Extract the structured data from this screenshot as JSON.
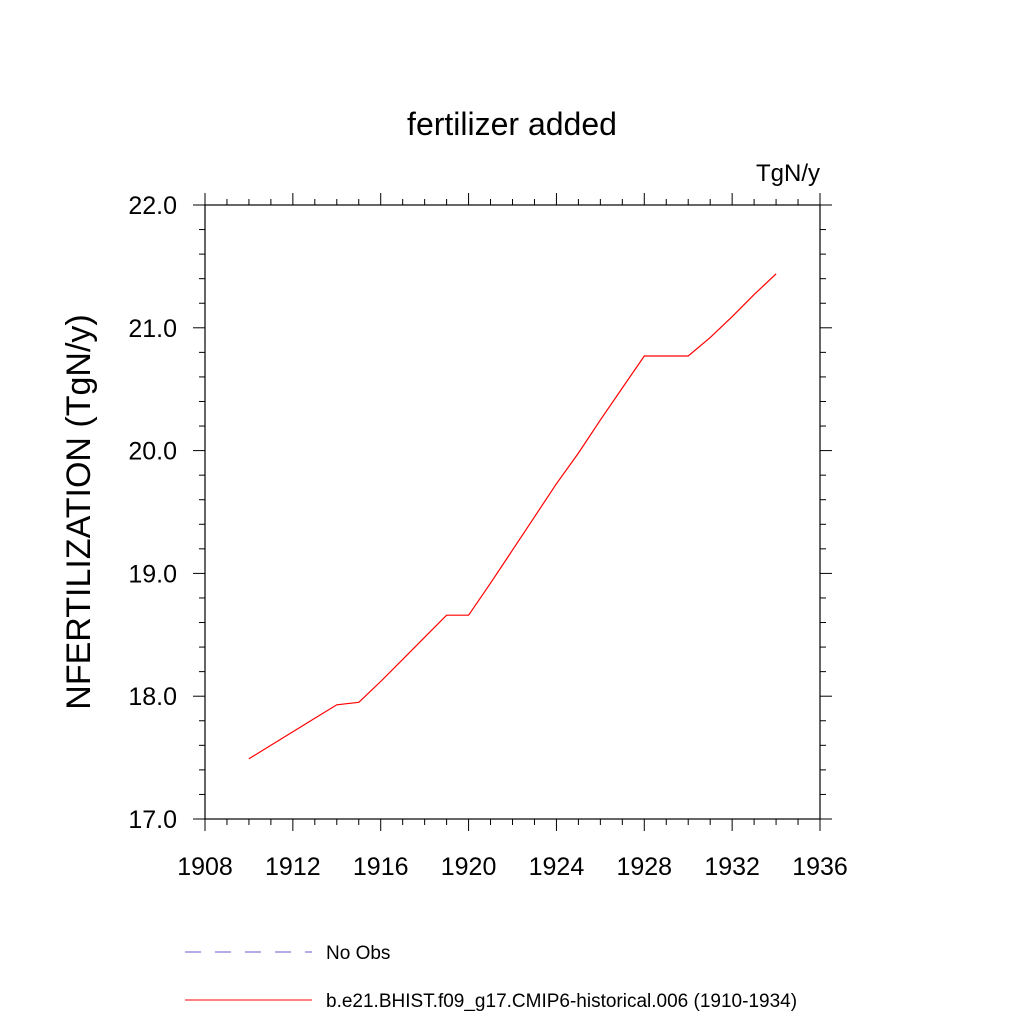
{
  "chart_data": {
    "type": "line",
    "title": "fertilizer added",
    "units": "TgN/y",
    "ylabel": "NFERTILIZATION  (TgN/y)",
    "xlabel": "",
    "xlim": [
      1908,
      1936
    ],
    "ylim": [
      17.0,
      22.0
    ],
    "xticks": [
      "1908",
      "1912",
      "1916",
      "1920",
      "1924",
      "1928",
      "1932",
      "1936"
    ],
    "yticks": [
      "17.0",
      "18.0",
      "19.0",
      "20.0",
      "21.0",
      "22.0"
    ],
    "grid": false,
    "legend_position": "bottom",
    "series": [
      {
        "name": "b.e21.BHIST.f09_g17.CMIP6-historical.006 (1910-1934)",
        "color": "#ff0000",
        "style": "solid",
        "x": [
          1910,
          1911,
          1912,
          1913,
          1914,
          1915,
          1916,
          1917,
          1918,
          1919,
          1920,
          1921,
          1922,
          1923,
          1924,
          1925,
          1926,
          1927,
          1928,
          1929,
          1930,
          1931,
          1932,
          1933,
          1934
        ],
        "y": [
          17.49,
          17.6,
          17.71,
          17.82,
          17.93,
          17.95,
          18.12,
          18.3,
          18.48,
          18.66,
          18.66,
          18.92,
          19.19,
          19.46,
          19.73,
          19.98,
          20.25,
          20.51,
          20.77,
          20.77,
          20.77,
          20.92,
          21.09,
          21.27,
          21.44
        ]
      }
    ],
    "legend": [
      {
        "label": "No Obs",
        "color": "#6a5acd",
        "style": "dashed"
      },
      {
        "label": "b.e21.BHIST.f09_g17.CMIP6-historical.006 (1910-1934)",
        "color": "#ff0000",
        "style": "solid"
      }
    ]
  }
}
